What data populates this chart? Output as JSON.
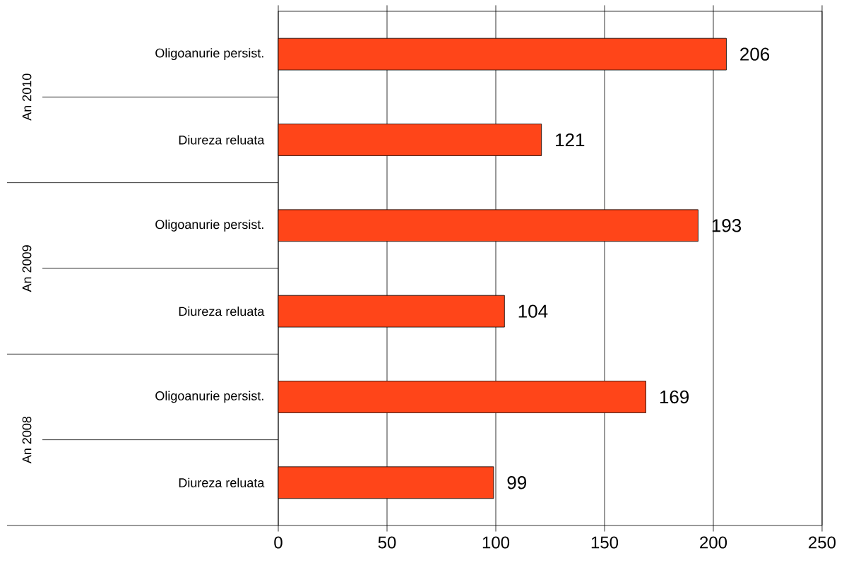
{
  "chart_data": {
    "type": "bar",
    "orientation": "horizontal",
    "categories": [
      "Oligoanurie persist.",
      "Diureza reluata",
      "Oligoanurie persist.",
      "Diureza reluata",
      "Oligoanurie persist.",
      "Diureza reluata"
    ],
    "values": [
      206,
      121,
      193,
      104,
      169,
      99
    ],
    "color": "#ff4519",
    "xlim": [
      0,
      250
    ],
    "xticks": [
      0,
      50,
      100,
      150,
      200,
      250
    ],
    "grid": "x",
    "data_labels": true,
    "annotations": [
      "An 2010",
      "An 2009",
      "An 2008"
    ]
  }
}
